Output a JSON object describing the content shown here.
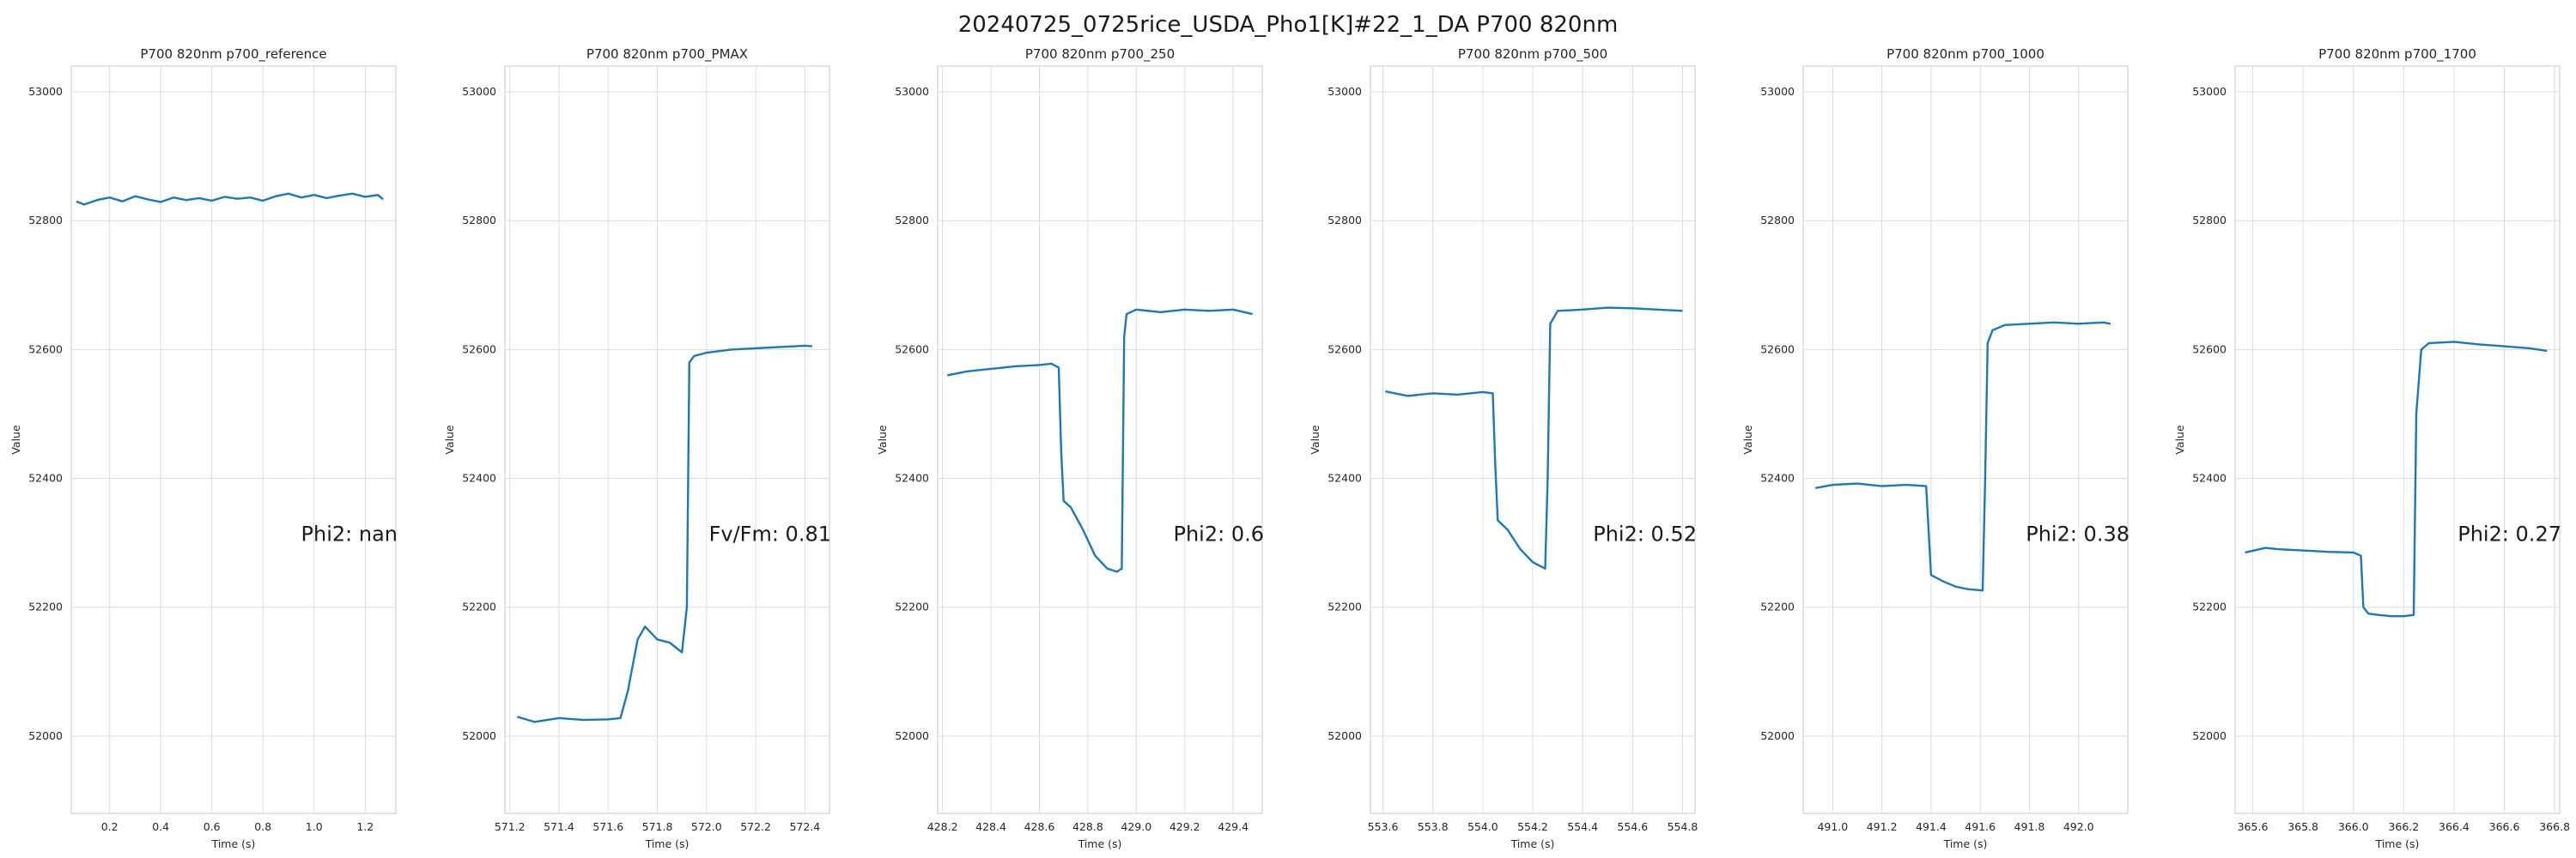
{
  "figure": {
    "title": "20240725_0725rice_USDA_Pho1[K]#22_1_DA P700 820nm"
  },
  "colors": {
    "line": "#1f77b4",
    "grid": "#dcdcdc",
    "axes_edge": "#d0d0d0",
    "background": "#ffffff"
  },
  "chart_data": [
    {
      "type": "line",
      "title": "P700 820nm p700_reference",
      "xlabel": "Time (s)",
      "ylabel": "Value",
      "xlim": [
        0.05,
        1.32
      ],
      "ylim": [
        51880,
        53040
      ],
      "xticks": [
        0.2,
        0.4,
        0.6,
        0.8,
        1.0,
        1.2
      ],
      "xtick_labels": [
        "0.2",
        "0.4",
        "0.6",
        "0.8",
        "1.0",
        "1.2"
      ],
      "yticks": [
        52000,
        52200,
        52400,
        52600,
        52800,
        53000
      ],
      "ytick_labels": [
        "52000",
        "52200",
        "52400",
        "52600",
        "52800",
        "53000"
      ],
      "grid": true,
      "annotation": "Phi2: nan",
      "series": [
        {
          "x": [
            0.07,
            0.1,
            0.15,
            0.2,
            0.25,
            0.3,
            0.35,
            0.4,
            0.45,
            0.5,
            0.55,
            0.6,
            0.65,
            0.7,
            0.75,
            0.8,
            0.85,
            0.9,
            0.95,
            1.0,
            1.05,
            1.1,
            1.15,
            1.2,
            1.25,
            1.27
          ],
          "y": [
            52830,
            52825,
            52832,
            52836,
            52830,
            52838,
            52833,
            52829,
            52836,
            52832,
            52835,
            52831,
            52837,
            52834,
            52836,
            52831,
            52838,
            52842,
            52836,
            52840,
            52835,
            52839,
            52842,
            52837,
            52840,
            52833
          ]
        }
      ]
    },
    {
      "type": "line",
      "title": "P700 820nm p700_PMAX",
      "xlabel": "Time (s)",
      "ylabel": "Value",
      "xlim": [
        571.18,
        572.5
      ],
      "ylim": [
        51880,
        53040
      ],
      "xticks": [
        571.2,
        571.4,
        571.6,
        571.8,
        572.0,
        572.2,
        572.4
      ],
      "xtick_labels": [
        "571.2",
        "571.4",
        "571.6",
        "571.8",
        "572.0",
        "572.2",
        "572.4"
      ],
      "yticks": [
        52000,
        52200,
        52400,
        52600,
        52800,
        53000
      ],
      "ytick_labels": [
        "52000",
        "52200",
        "52400",
        "52600",
        "52800",
        "53000"
      ],
      "grid": true,
      "annotation": "Fv/Fm: 0.81",
      "series": [
        {
          "x": [
            571.23,
            571.3,
            571.4,
            571.5,
            571.6,
            571.65,
            571.68,
            571.72,
            571.75,
            571.8,
            571.85,
            571.9,
            571.92,
            571.93,
            571.95,
            572.0,
            572.1,
            572.2,
            572.3,
            572.4,
            572.43
          ],
          "y": [
            52030,
            52022,
            52028,
            52025,
            52026,
            52028,
            52070,
            52150,
            52170,
            52150,
            52145,
            52130,
            52200,
            52580,
            52590,
            52595,
            52600,
            52602,
            52604,
            52606,
            52605
          ]
        }
      ]
    },
    {
      "type": "line",
      "title": "P700 820nm p700_250",
      "xlabel": "Time (s)",
      "ylabel": "Value",
      "xlim": [
        428.18,
        429.52
      ],
      "ylim": [
        51880,
        53040
      ],
      "xticks": [
        428.2,
        428.4,
        428.6,
        428.8,
        429.0,
        429.2,
        429.4
      ],
      "xtick_labels": [
        "428.2",
        "428.4",
        "428.6",
        "428.8",
        "429.0",
        "429.2",
        "429.4"
      ],
      "yticks": [
        52000,
        52200,
        52400,
        52600,
        52800,
        53000
      ],
      "ytick_labels": [
        "52000",
        "52200",
        "52400",
        "52600",
        "52800",
        "53000"
      ],
      "grid": true,
      "annotation": "Phi2: 0.6",
      "series": [
        {
          "x": [
            428.22,
            428.3,
            428.4,
            428.5,
            428.6,
            428.65,
            428.68,
            428.69,
            428.7,
            428.73,
            428.78,
            428.83,
            428.88,
            428.92,
            428.94,
            428.95,
            428.96,
            429.0,
            429.1,
            429.2,
            429.3,
            429.4,
            429.48
          ],
          "y": [
            52560,
            52566,
            52570,
            52574,
            52576,
            52578,
            52572,
            52440,
            52365,
            52355,
            52320,
            52280,
            52260,
            52255,
            52260,
            52620,
            52655,
            52662,
            52658,
            52662,
            52660,
            52662,
            52655
          ]
        }
      ]
    },
    {
      "type": "line",
      "title": "P700 820nm p700_500",
      "xlabel": "Time (s)",
      "ylabel": "Value",
      "xlim": [
        553.55,
        554.85
      ],
      "ylim": [
        51880,
        53040
      ],
      "xticks": [
        553.6,
        553.8,
        554.0,
        554.2,
        554.4,
        554.6,
        554.8
      ],
      "xtick_labels": [
        "553.6",
        "553.8",
        "554.0",
        "554.2",
        "554.4",
        "554.6",
        "554.8"
      ],
      "yticks": [
        52000,
        52200,
        52400,
        52600,
        52800,
        53000
      ],
      "ytick_labels": [
        "52000",
        "52200",
        "52400",
        "52600",
        "52800",
        "53000"
      ],
      "grid": true,
      "annotation": "Phi2: 0.52",
      "series": [
        {
          "x": [
            553.61,
            553.7,
            553.8,
            553.9,
            554.0,
            554.04,
            554.05,
            554.06,
            554.1,
            554.15,
            554.2,
            554.25,
            554.26,
            554.27,
            554.3,
            554.4,
            554.5,
            554.6,
            554.7,
            554.8
          ],
          "y": [
            52535,
            52528,
            52532,
            52530,
            52534,
            52532,
            52420,
            52335,
            52320,
            52290,
            52270,
            52260,
            52400,
            52640,
            52660,
            52662,
            52665,
            52664,
            52662,
            52660
          ]
        }
      ]
    },
    {
      "type": "line",
      "title": "P700 820nm p700_1000",
      "xlabel": "Time (s)",
      "ylabel": "Value",
      "xlim": [
        490.88,
        492.2
      ],
      "ylim": [
        51880,
        53040
      ],
      "xticks": [
        491.0,
        491.2,
        491.4,
        491.6,
        491.8,
        492.0
      ],
      "xtick_labels": [
        "491.0",
        "491.2",
        "491.4",
        "491.6",
        "491.8",
        "492.0"
      ],
      "yticks": [
        52000,
        52200,
        52400,
        52600,
        52800,
        53000
      ],
      "ytick_labels": [
        "52000",
        "52200",
        "52400",
        "52600",
        "52800",
        "53000"
      ],
      "grid": true,
      "annotation": "Phi2: 0.38",
      "series": [
        {
          "x": [
            490.93,
            491.0,
            491.1,
            491.2,
            491.3,
            491.38,
            491.39,
            491.4,
            491.45,
            491.5,
            491.55,
            491.61,
            491.62,
            491.63,
            491.65,
            491.7,
            491.8,
            491.9,
            492.0,
            492.1,
            492.13
          ],
          "y": [
            52385,
            52390,
            52392,
            52388,
            52390,
            52388,
            52320,
            52250,
            52240,
            52232,
            52228,
            52226,
            52400,
            52610,
            52630,
            52638,
            52640,
            52642,
            52640,
            52642,
            52640
          ]
        }
      ]
    },
    {
      "type": "line",
      "title": "P700 820nm p700_1700",
      "xlabel": "Time (s)",
      "ylabel": "Value",
      "xlim": [
        365.53,
        366.82
      ],
      "ylim": [
        51880,
        53040
      ],
      "xticks": [
        365.6,
        365.8,
        366.0,
        366.2,
        366.4,
        366.6,
        366.8
      ],
      "xtick_labels": [
        "365.6",
        "365.8",
        "366.0",
        "366.2",
        "366.4",
        "366.6",
        "366.8"
      ],
      "yticks": [
        52000,
        52200,
        52400,
        52600,
        52800,
        53000
      ],
      "ytick_labels": [
        "52000",
        "52200",
        "52400",
        "52600",
        "52800",
        "53000"
      ],
      "grid": true,
      "annotation": "Phi2: 0.27",
      "series": [
        {
          "x": [
            365.57,
            365.65,
            365.7,
            365.8,
            365.9,
            366.0,
            366.03,
            366.04,
            366.06,
            366.1,
            366.15,
            366.2,
            366.24,
            366.25,
            366.27,
            366.3,
            366.4,
            366.5,
            366.6,
            366.7,
            366.77
          ],
          "y": [
            52285,
            52292,
            52290,
            52288,
            52286,
            52285,
            52280,
            52200,
            52190,
            52188,
            52186,
            52186,
            52188,
            52500,
            52600,
            52610,
            52612,
            52608,
            52605,
            52602,
            52598
          ]
        }
      ]
    }
  ]
}
